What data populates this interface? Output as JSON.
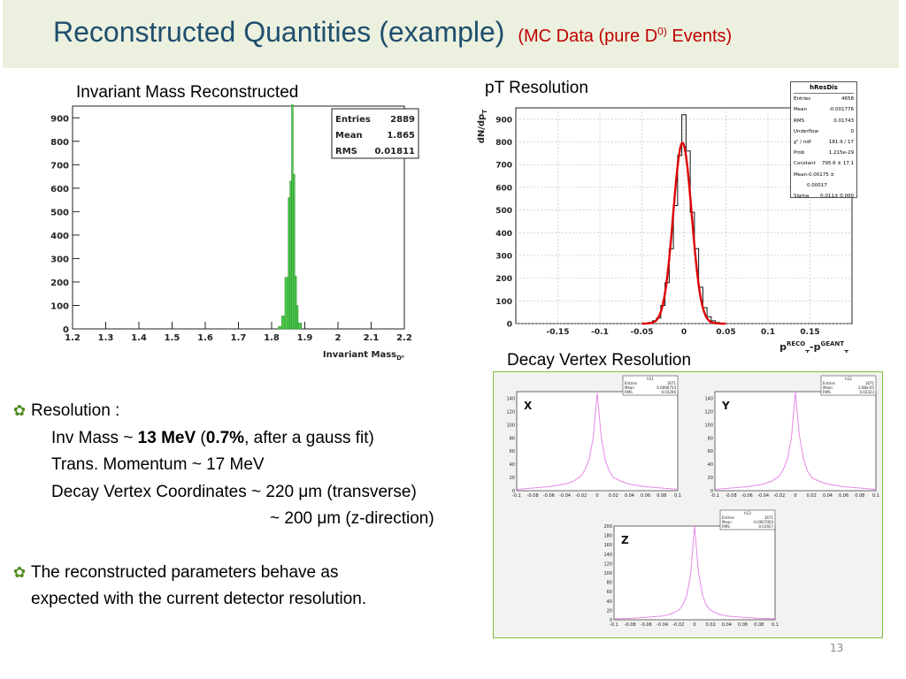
{
  "title": {
    "main": "Reconstructed Quantities (example)",
    "sub_prefix": "(MC Data (pure D",
    "sub_sup": "0)",
    "sub_suffix": " Events)"
  },
  "captions": {
    "invariant_mass": "Invariant Mass Reconstructed",
    "pt_resolution": "pT Resolution",
    "decay_vertex": "Decay Vertex Resolution"
  },
  "bullets": {
    "resolution_label": "Resolution :",
    "inv_mass_prefix": "Inv Mass ~ ",
    "inv_mass_value": "13 MeV",
    "inv_mass_open": " (",
    "inv_mass_pct": "0.7%",
    "inv_mass_suffix": ", after a gauss fit)",
    "trans_momentum": "Trans. Momentum ~ 17 MeV",
    "decay_vertex": "Decay Vertex Coordinates ~ 220 μm (transverse)",
    "z_direction": "~ 200 μm (z-direction)",
    "conclusion_line1": "The reconstructed parameters behave as",
    "conclusion_line2": "expected with the current detector resolution."
  },
  "page_number": "13",
  "colors": {
    "title": "#1f4e6e",
    "subtitle": "#c00000",
    "title_bg": "#ebf1de",
    "bullet": "#4e8c1e",
    "hist_green": "#4cc94c",
    "fit_red": "#e00000",
    "vertex_magenta": "#e58ae5"
  },
  "chart_data": [
    {
      "type": "bar",
      "name": "invariant_mass",
      "xlabel": "Invariant Mass",
      "xlabel_sub": "D⁰",
      "ylabel": "",
      "xlim": [
        1.2,
        2.2
      ],
      "ylim": [
        0,
        950
      ],
      "xticks": [
        "1.2",
        "1.3",
        "1.4",
        "1.5",
        "1.6",
        "1.7",
        "1.8",
        "1.9",
        "2",
        "2.1",
        "2.2"
      ],
      "yticks": [
        "0",
        "100",
        "200",
        "300",
        "400",
        "500",
        "600",
        "700",
        "800",
        "900"
      ],
      "stats": [
        [
          "Entries",
          "2889"
        ],
        [
          "Mean",
          "1.865"
        ],
        [
          "RMS",
          "0.01811"
        ]
      ],
      "bins": [
        {
          "x0": 1.82,
          "x1": 1.83,
          "y": 10
        },
        {
          "x0": 1.83,
          "x1": 1.84,
          "y": 55
        },
        {
          "x0": 1.84,
          "x1": 1.85,
          "y": 220
        },
        {
          "x0": 1.85,
          "x1": 1.855,
          "y": 560
        },
        {
          "x0": 1.855,
          "x1": 1.86,
          "y": 630
        },
        {
          "x0": 1.86,
          "x1": 1.865,
          "y": 960
        },
        {
          "x0": 1.865,
          "x1": 1.87,
          "y": 660
        },
        {
          "x0": 1.87,
          "x1": 1.875,
          "y": 225
        },
        {
          "x0": 1.875,
          "x1": 1.88,
          "y": 100
        },
        {
          "x0": 1.88,
          "x1": 1.89,
          "y": 25
        }
      ]
    },
    {
      "type": "line",
      "name": "pt_resolution",
      "ylabel": "dN/dp",
      "ylabel_sub": "T",
      "xlabel_main": "p",
      "xlabel_sup1": "RECO",
      "xlabel_sub1": "T",
      "xlabel_mid": "-p",
      "xlabel_sup2": "GEANT",
      "xlabel_sub2": "T",
      "xlim": [
        -0.2,
        0.2
      ],
      "ylim": [
        0,
        950
      ],
      "xticks": [
        "-0.15",
        "-0.1",
        "-0.05",
        "0",
        "0.05",
        "0.1",
        "0.15"
      ],
      "xtick_values": [
        -0.15,
        -0.1,
        -0.05,
        0,
        0.05,
        0.1,
        0.15
      ],
      "yticks": [
        "0",
        "100",
        "200",
        "300",
        "400",
        "500",
        "600",
        "700",
        "800",
        "900"
      ],
      "stats_title": "hResDis",
      "stats": [
        [
          "Entries",
          "4658"
        ],
        [
          "Mean",
          "-0.001776"
        ],
        [
          "RMS",
          "0.01743"
        ],
        [
          "Underflow",
          "0"
        ],
        [
          "χ² / ndf",
          "181.9 / 17"
        ],
        [
          "Prob",
          "1.215e-29"
        ],
        [
          "Constant",
          "795.6 ± 17.1"
        ],
        [
          "Mean",
          "-0.00175 ± 0.00017"
        ],
        [
          "Sigma",
          "0.011± 0.000"
        ]
      ],
      "histogram": [
        {
          "x": -0.04,
          "y": 5
        },
        {
          "x": -0.035,
          "y": 12
        },
        {
          "x": -0.03,
          "y": 25
        },
        {
          "x": -0.025,
          "y": 80
        },
        {
          "x": -0.02,
          "y": 180
        },
        {
          "x": -0.015,
          "y": 330
        },
        {
          "x": -0.01,
          "y": 520
        },
        {
          "x": -0.005,
          "y": 740
        },
        {
          "x": 0.0,
          "y": 920
        },
        {
          "x": 0.005,
          "y": 760
        },
        {
          "x": 0.01,
          "y": 490
        },
        {
          "x": 0.015,
          "y": 330
        },
        {
          "x": 0.02,
          "y": 160
        },
        {
          "x": 0.025,
          "y": 70
        },
        {
          "x": 0.03,
          "y": 30
        },
        {
          "x": 0.035,
          "y": 12
        },
        {
          "x": 0.04,
          "y": 5
        }
      ],
      "fit": {
        "constant": 795.6,
        "mean": -0.00175,
        "sigma": 0.011
      }
    },
    {
      "type": "line",
      "name": "decay_vertex",
      "panels": [
        {
          "label": "X",
          "hist_id": "h11",
          "stats": [
            [
              "Entries",
              "1671"
            ],
            [
              "Mean",
              "0.0006754"
            ],
            [
              "RMS",
              "0.02266"
            ]
          ],
          "ylim": [
            0,
            150
          ],
          "yticks": [
            "0",
            "20",
            "40",
            "60",
            "80",
            "100",
            "120",
            "140"
          ],
          "xticks": [
            "-0.1",
            "-0.08",
            "-0.06",
            "-0.04",
            "-0.02",
            "0",
            "0.02",
            "0.04",
            "0.06",
            "0.08",
            "0.1"
          ],
          "x": [
            -0.1,
            -0.08,
            -0.06,
            -0.04,
            -0.03,
            -0.02,
            -0.015,
            -0.01,
            -0.005,
            0,
            0.005,
            0.01,
            0.015,
            0.02,
            0.03,
            0.04,
            0.06,
            0.08,
            0.1
          ],
          "y": [
            2,
            4,
            6,
            10,
            14,
            22,
            32,
            48,
            80,
            148,
            82,
            46,
            30,
            20,
            14,
            10,
            6,
            4,
            2
          ]
        },
        {
          "label": "Y",
          "hist_id": "h12",
          "stats": [
            [
              "Entries",
              "1671"
            ],
            [
              "Mean",
              "2.88e-05"
            ],
            [
              "RMS",
              "0.02323"
            ]
          ],
          "ylim": [
            0,
            150
          ],
          "yticks": [
            "0",
            "20",
            "40",
            "60",
            "80",
            "100",
            "120",
            "140"
          ],
          "xticks": [
            "-0.1",
            "-0.08",
            "-0.06",
            "-0.04",
            "-0.02",
            "0",
            "0.02",
            "0.04",
            "0.06",
            "0.08",
            "0.1"
          ],
          "x": [
            -0.1,
            -0.08,
            -0.06,
            -0.04,
            -0.03,
            -0.02,
            -0.015,
            -0.01,
            -0.005,
            0,
            0.005,
            0.01,
            0.015,
            0.02,
            0.03,
            0.04,
            0.06,
            0.08,
            0.1
          ],
          "y": [
            2,
            4,
            6,
            10,
            14,
            22,
            32,
            48,
            80,
            150,
            84,
            48,
            30,
            20,
            14,
            10,
            6,
            4,
            2
          ]
        },
        {
          "label": "Z",
          "hist_id": "h13",
          "stats": [
            [
              "Entries",
              "1671"
            ],
            [
              "Mean",
              "-0.0007003"
            ],
            [
              "RMS",
              "0.01927"
            ]
          ],
          "ylim": [
            0,
            200
          ],
          "yticks": [
            "0",
            "20",
            "40",
            "60",
            "80",
            "100",
            "120",
            "140",
            "160",
            "180",
            "200"
          ],
          "xticks": [
            "-0.1",
            "-0.08",
            "-0.06",
            "-0.04",
            "-0.02",
            "0",
            "0.02",
            "0.04",
            "0.06",
            "0.08",
            "0.1"
          ],
          "x": [
            -0.1,
            -0.08,
            -0.06,
            -0.04,
            -0.03,
            -0.02,
            -0.015,
            -0.01,
            -0.005,
            0,
            0.005,
            0.01,
            0.015,
            0.02,
            0.03,
            0.04,
            0.06,
            0.08,
            0.1
          ],
          "y": [
            2,
            3,
            5,
            8,
            12,
            20,
            30,
            50,
            95,
            200,
            100,
            52,
            30,
            20,
            12,
            8,
            5,
            3,
            2
          ]
        }
      ]
    }
  ]
}
